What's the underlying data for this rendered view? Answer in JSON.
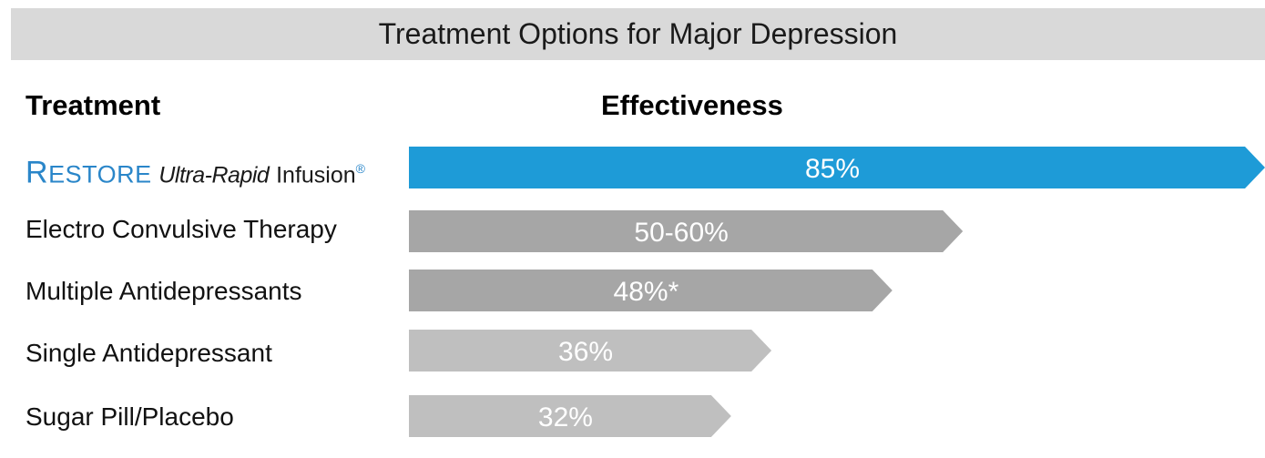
{
  "title": "Treatment Options for Major Depression",
  "columns": {
    "treatment": "Treatment",
    "effectiveness": "Effectiveness"
  },
  "brand": {
    "r": "R",
    "estore": "ESTORE",
    "ultra": "Ultra-Rapid",
    "infusion": "Infusion",
    "reg": "®"
  },
  "chart_data": {
    "type": "bar",
    "orientation": "horizontal",
    "categories": [
      "RESTORE Ultra-Rapid Infusion",
      "Electro Convulsive Therapy",
      "Multiple Antidepressants",
      "Single Antidepressant",
      "Sugar Pill/Placebo"
    ],
    "values": [
      85,
      55,
      48,
      36,
      32
    ],
    "value_labels": [
      "85%",
      "50-60%",
      "48%*",
      "36%",
      "32%"
    ],
    "bar_colors": [
      "#1e9bd7",
      "#a6a6a6",
      "#a6a6a6",
      "#bfbfbf",
      "#bfbfbf"
    ],
    "xlim": [
      0,
      85
    ],
    "grid": false,
    "legend": "none"
  }
}
